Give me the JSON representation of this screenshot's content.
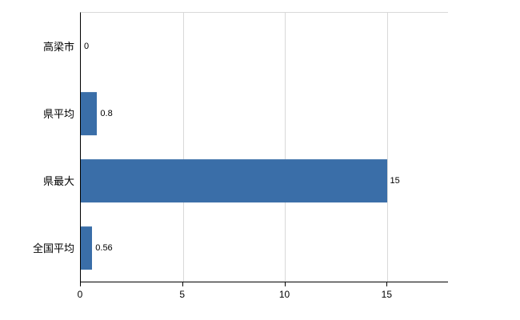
{
  "chart_data": {
    "type": "bar",
    "orientation": "horizontal",
    "categories": [
      "高梁市",
      "県平均",
      "県最大",
      "全国平均"
    ],
    "values": [
      0,
      0.8,
      15,
      0.56
    ],
    "value_labels": [
      "0",
      "0.8",
      "15",
      "0.56"
    ],
    "xticks": [
      0,
      5,
      10,
      15
    ],
    "xtick_labels": [
      "0",
      "5",
      "10",
      "15"
    ],
    "xlim": [
      0,
      18
    ],
    "grid": true,
    "legend": "none",
    "bar_color": "#3a6ea8",
    "gridline_color": "#d9d9d9",
    "axis_color": "#000000"
  }
}
